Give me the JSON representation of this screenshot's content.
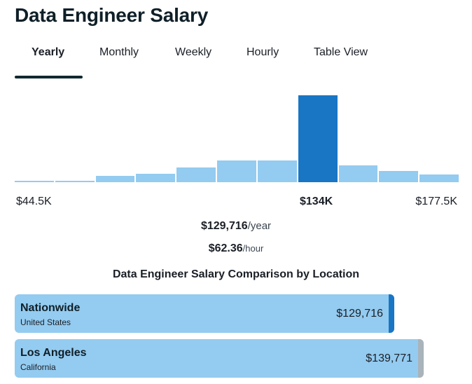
{
  "page": {
    "title": "Data Engineer Salary"
  },
  "tabs": [
    {
      "label": "Yearly",
      "active": true
    },
    {
      "label": "Monthly",
      "active": false
    },
    {
      "label": "Weekly",
      "active": false
    },
    {
      "label": "Hourly",
      "active": false
    },
    {
      "label": "Table View",
      "active": false
    }
  ],
  "histogram": {
    "bins": [
      {
        "relative_height": 0.01,
        "highlighted": false
      },
      {
        "relative_height": 0.02,
        "highlighted": false
      },
      {
        "relative_height": 0.07,
        "highlighted": false
      },
      {
        "relative_height": 0.1,
        "highlighted": false
      },
      {
        "relative_height": 0.17,
        "highlighted": false
      },
      {
        "relative_height": 0.25,
        "highlighted": false
      },
      {
        "relative_height": 0.25,
        "highlighted": false
      },
      {
        "relative_height": 1.0,
        "highlighted": true
      },
      {
        "relative_height": 0.19,
        "highlighted": false
      },
      {
        "relative_height": 0.13,
        "highlighted": false
      },
      {
        "relative_height": 0.09,
        "highlighted": false
      }
    ],
    "min_label": "$44.5K",
    "marker_label": "$134K",
    "max_label": "$177.5K"
  },
  "summary": {
    "yearly_amount": "$129,716",
    "yearly_unit": "/year",
    "hourly_amount": "$62.36",
    "hourly_unit": "/hour"
  },
  "comparison": {
    "title": "Data Engineer Salary Comparison by Location",
    "locations": [
      {
        "name": "Nationwide",
        "region": "United States",
        "value": "$129,716",
        "edge_color": "#1976c4"
      },
      {
        "name": "Los Angeles",
        "region": "California",
        "value": "$139,771",
        "edge_color": "#a9b3ba"
      }
    ]
  },
  "colors": {
    "bar": "#94cbf0",
    "bar_highlight": "#1976c4",
    "tab_underline": "#0f2a30"
  }
}
